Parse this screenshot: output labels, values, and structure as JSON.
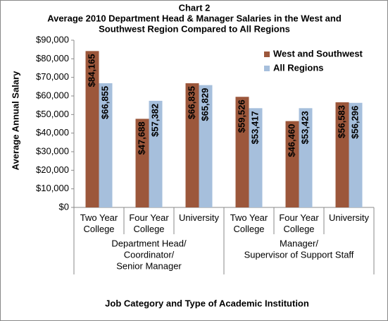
{
  "chart_data": {
    "type": "bar",
    "title": [
      "Chart 2",
      "Average 2010 Department Head & Manager Salaries in the West and",
      "Southwest Region Compared to All Regions"
    ],
    "y_label": "Average Annual Salary",
    "x_label": "Job Category and Type of Academic Institution",
    "categories": [
      "Two Year College",
      "Four Year College",
      "University",
      "Two Year College",
      "Four Year College",
      "University"
    ],
    "groups": [
      {
        "lines": [
          "Department Head/",
          "Coordinator/",
          "Senior Manager"
        ],
        "span": 3
      },
      {
        "lines": [
          "Manager/",
          "Supervisor of Support Staff"
        ],
        "span": 3
      }
    ],
    "series": [
      {
        "name": "West and Southwest",
        "color": "#9c573b",
        "values": [
          84165,
          47688,
          66835,
          59526,
          46460,
          56583
        ],
        "value_labels": [
          "$84,165",
          "$47,688",
          "$66,835",
          "$59,526",
          "$46,460",
          "$56,583"
        ]
      },
      {
        "name": "All Regions",
        "color": "#a6bfdc",
        "values": [
          66855,
          57382,
          65829,
          53417,
          53423,
          56296
        ],
        "value_labels": [
          "$66,855",
          "$57,382",
          "$65,829",
          "$53,417",
          "$53,423",
          "$56,296"
        ]
      }
    ],
    "ylim": [
      0,
      90000
    ],
    "yticks": [
      {
        "value": 0,
        "label": "$0"
      },
      {
        "value": 10000,
        "label": "$10,000"
      },
      {
        "value": 20000,
        "label": "$20,000"
      },
      {
        "value": 30000,
        "label": "$30,000"
      },
      {
        "value": 40000,
        "label": "$40,000"
      },
      {
        "value": 50000,
        "label": "$50,000"
      },
      {
        "value": 60000,
        "label": "$60,000"
      },
      {
        "value": 70000,
        "label": "$70,000"
      },
      {
        "value": 80000,
        "label": "$80,000"
      },
      {
        "value": 90000,
        "label": "$90,000"
      }
    ],
    "grid": false,
    "legend": "top-right"
  }
}
